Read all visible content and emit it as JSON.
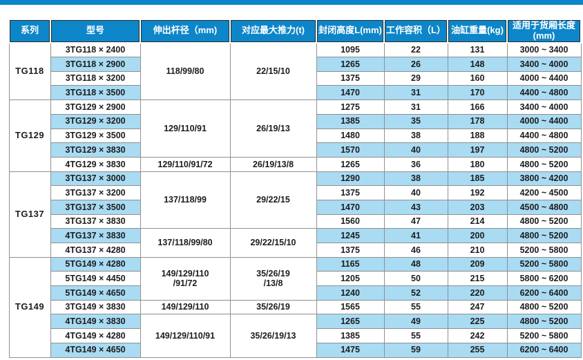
{
  "page": {
    "accent_color": "#0d86c9",
    "row_alt_color": "#a9dbf3",
    "border_color": "#8f8f8f"
  },
  "table": {
    "headers": [
      "系列",
      "型号",
      "伸出杆径（mm)",
      "对应最大推力(t)",
      "封闭高度L(mm)",
      "工作容积（L）",
      "油缸重量(kg)",
      "适用于货厢长度 (mm)"
    ],
    "groups": [
      {
        "series": "TG118",
        "rows": [
          {
            "model": "3TG118 × 2400",
            "height": "1095",
            "volume": "22",
            "weight": "131",
            "range": "3000 ~ 3400"
          },
          {
            "model": "3TG118 × 2900",
            "height": "1265",
            "volume": "26",
            "weight": "148",
            "range": "3400 ~ 4000"
          },
          {
            "model": "3TG118 × 3200",
            "height": "1375",
            "volume": "29",
            "weight": "160",
            "range": "4000 ~ 4400"
          },
          {
            "model": "3TG118 × 3500",
            "height": "1470",
            "volume": "31",
            "weight": "170",
            "range": "4400 ~ 4800"
          }
        ],
        "rod_spans": [
          {
            "text": "118/99/80",
            "span": 4
          }
        ],
        "thrust_spans": [
          {
            "text": "22/15/10",
            "span": 4
          }
        ]
      },
      {
        "series": "TG129",
        "rows": [
          {
            "model": "3TG129 × 2900",
            "height": "1275",
            "volume": "31",
            "weight": "166",
            "range": "3400 ~ 4000"
          },
          {
            "model": "3TG129 × 3200",
            "height": "1385",
            "volume": "35",
            "weight": "178",
            "range": "4000 ~ 4400"
          },
          {
            "model": "3TG129 × 3500",
            "height": "1480",
            "volume": "38",
            "weight": "188",
            "range": "4400 ~ 4800"
          },
          {
            "model": "3TG129 × 3830",
            "height": "1570",
            "volume": "40",
            "weight": "197",
            "range": "4800 ~ 5200"
          },
          {
            "model": "4TG129 × 3830",
            "height": "1265",
            "volume": "36",
            "weight": "180",
            "range": "4800 ~ 5200"
          }
        ],
        "rod_spans": [
          {
            "text": "129/110/91",
            "span": 4
          },
          {
            "text": "129/110/91/72",
            "span": 1
          }
        ],
        "thrust_spans": [
          {
            "text": "26/19/13",
            "span": 4
          },
          {
            "text": "26/19/13/8",
            "span": 1
          }
        ]
      },
      {
        "series": "TG137",
        "rows": [
          {
            "model": "3TG137 × 3000",
            "height": "1290",
            "volume": "38",
            "weight": "185",
            "range": "3800 ~ 4200"
          },
          {
            "model": "3TG137 × 3200",
            "height": "1375",
            "volume": "40",
            "weight": "192",
            "range": "4200 ~ 4500"
          },
          {
            "model": "3TG137 × 3500",
            "height": "1470",
            "volume": "43",
            "weight": "203",
            "range": "4500 ~ 4800"
          },
          {
            "model": "3TG137 × 3830",
            "height": "1560",
            "volume": "47",
            "weight": "214",
            "range": "4800 ~ 5200"
          },
          {
            "model": "4TG137 × 3830",
            "height": "1245",
            "volume": "41",
            "weight": "200",
            "range": "4800 ~ 5200"
          },
          {
            "model": "4TG137 × 4280",
            "height": "1375",
            "volume": "46",
            "weight": "210",
            "range": "5200 ~ 5800"
          }
        ],
        "rod_spans": [
          {
            "text": "137/118/99",
            "span": 4
          },
          {
            "text": "137/118/99/80",
            "span": 2
          }
        ],
        "thrust_spans": [
          {
            "text": "29/22/15",
            "span": 4
          },
          {
            "text": "29/22/15/10",
            "span": 2
          }
        ]
      },
      {
        "series": "TG149",
        "rows": [
          {
            "model": "5TG149 × 4280",
            "height": "1165",
            "volume": "48",
            "weight": "209",
            "range": "5200 ~ 5800"
          },
          {
            "model": "5TG149 × 4450",
            "height": "1205",
            "volume": "50",
            "weight": "215",
            "range": "5800 ~ 6200"
          },
          {
            "model": "5TG149 × 4650",
            "height": "1240",
            "volume": "52",
            "weight": "220",
            "range": "6200 ~ 6400"
          },
          {
            "model": "3TG149 × 3830",
            "height": "1565",
            "volume": "55",
            "weight": "247",
            "range": "4800 ~ 5200"
          },
          {
            "model": "4TG149 × 3830",
            "height": "1265",
            "volume": "49",
            "weight": "225",
            "range": "4800 ~ 5200"
          },
          {
            "model": "4TG149 × 4280",
            "height": "1385",
            "volume": "55",
            "weight": "242",
            "range": "5200 ~ 5800"
          },
          {
            "model": "4TG149 × 4650",
            "height": "1475",
            "volume": "59",
            "weight": "255",
            "range": "6200 ~ 6400"
          }
        ],
        "rod_spans": [
          {
            "text": "149/129/110\n/91/72",
            "span": 3
          },
          {
            "text": "149/129/110",
            "span": 1
          },
          {
            "text": "149/129/110/91",
            "span": 3
          }
        ],
        "thrust_spans": [
          {
            "text": "35/26/19\n/13/8",
            "span": 3
          },
          {
            "text": "35/26/19",
            "span": 1
          },
          {
            "text": "35/26/19/13",
            "span": 3
          }
        ]
      }
    ]
  },
  "chart_data": {
    "type": "table",
    "title": "",
    "columns": [
      "系列",
      "型号",
      "伸出杆径（mm)",
      "对应最大推力(t)",
      "封闭高度L(mm)",
      "工作容积（L）",
      "油缸重量(kg)",
      "适用于货厢长度 (mm)"
    ],
    "rows": [
      [
        "TG118",
        "3TG118 × 2400",
        "118/99/80",
        "22/15/10",
        1095,
        22,
        131,
        "3000 ~ 3400"
      ],
      [
        "TG118",
        "3TG118 × 2900",
        "118/99/80",
        "22/15/10",
        1265,
        26,
        148,
        "3400 ~ 4000"
      ],
      [
        "TG118",
        "3TG118 × 3200",
        "118/99/80",
        "22/15/10",
        1375,
        29,
        160,
        "4000 ~ 4400"
      ],
      [
        "TG118",
        "3TG118 × 3500",
        "118/99/80",
        "22/15/10",
        1470,
        31,
        170,
        "4400 ~ 4800"
      ],
      [
        "TG129",
        "3TG129 × 2900",
        "129/110/91",
        "26/19/13",
        1275,
        31,
        166,
        "3400 ~ 4000"
      ],
      [
        "TG129",
        "3TG129 × 3200",
        "129/110/91",
        "26/19/13",
        1385,
        35,
        178,
        "4000 ~ 4400"
      ],
      [
        "TG129",
        "3TG129 × 3500",
        "129/110/91",
        "26/19/13",
        1480,
        38,
        188,
        "4400 ~ 4800"
      ],
      [
        "TG129",
        "3TG129 × 3830",
        "129/110/91",
        "26/19/13",
        1570,
        40,
        197,
        "4800 ~ 5200"
      ],
      [
        "TG129",
        "4TG129 × 3830",
        "129/110/91/72",
        "26/19/13/8",
        1265,
        36,
        180,
        "4800 ~ 5200"
      ],
      [
        "TG137",
        "3TG137 × 3000",
        "137/118/99",
        "29/22/15",
        1290,
        38,
        185,
        "3800 ~ 4200"
      ],
      [
        "TG137",
        "3TG137 × 3200",
        "137/118/99",
        "29/22/15",
        1375,
        40,
        192,
        "4200 ~ 4500"
      ],
      [
        "TG137",
        "3TG137 × 3500",
        "137/118/99",
        "29/22/15",
        1470,
        43,
        203,
        "4500 ~ 4800"
      ],
      [
        "TG137",
        "3TG137 × 3830",
        "137/118/99",
        "29/22/15",
        1560,
        47,
        214,
        "4800 ~ 5200"
      ],
      [
        "TG137",
        "4TG137 × 3830",
        "137/118/99/80",
        "29/22/15/10",
        1245,
        41,
        200,
        "4800 ~ 5200"
      ],
      [
        "TG137",
        "4TG137 × 4280",
        "137/118/99/80",
        "29/22/15/10",
        1375,
        46,
        210,
        "5200 ~ 5800"
      ],
      [
        "TG149",
        "5TG149 × 4280",
        "149/129/110/91/72",
        "35/26/19/13/8",
        1165,
        48,
        209,
        "5200 ~ 5800"
      ],
      [
        "TG149",
        "5TG149 × 4450",
        "149/129/110/91/72",
        "35/26/19/13/8",
        1205,
        50,
        215,
        "5800 ~ 6200"
      ],
      [
        "TG149",
        "5TG149 × 4650",
        "149/129/110/91/72",
        "35/26/19/13/8",
        1240,
        52,
        220,
        "6200 ~ 6400"
      ],
      [
        "TG149",
        "3TG149 × 3830",
        "149/129/110",
        "35/26/19",
        1565,
        55,
        247,
        "4800 ~ 5200"
      ],
      [
        "TG149",
        "4TG149 × 3830",
        "149/129/110/91",
        "35/26/19/13",
        1265,
        49,
        225,
        "4800 ~ 5200"
      ],
      [
        "TG149",
        "4TG149 × 4280",
        "149/129/110/91",
        "35/26/19/13",
        1385,
        55,
        242,
        "5200 ~ 5800"
      ],
      [
        "TG149",
        "4TG149 × 4650",
        "149/129/110/91",
        "35/26/19/13",
        1475,
        59,
        255,
        "6200 ~ 6400"
      ]
    ]
  }
}
